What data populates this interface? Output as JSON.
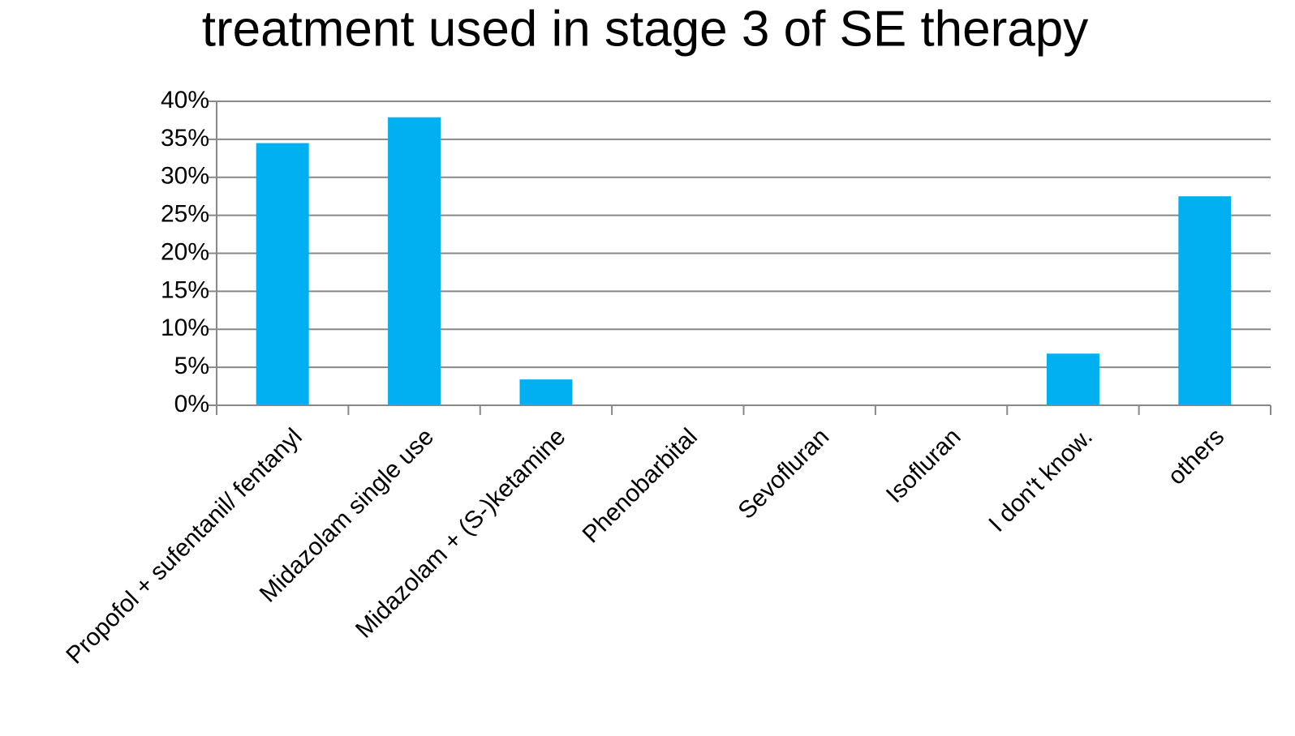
{
  "chart_data": {
    "type": "bar",
    "title": "treatment used in stage 3 of SE therapy",
    "categories": [
      "Propofol + sufentanil/ fentanyl",
      "Midazolam single use",
      "Midazolam + (S-)ketamine",
      "Phenobarbital",
      "Sevofluran",
      "Isofluran",
      "I don't know.",
      "others"
    ],
    "values": [
      34.5,
      37.9,
      3.4,
      0,
      0,
      0,
      6.8,
      27.5
    ],
    "color": "#00b0f0",
    "ylim": [
      0,
      40
    ],
    "yticks": [
      {
        "value": 0,
        "label": "0%"
      },
      {
        "value": 5,
        "label": "5%"
      },
      {
        "value": 10,
        "label": "10%"
      },
      {
        "value": 15,
        "label": "15%"
      },
      {
        "value": 20,
        "label": "20%"
      },
      {
        "value": 25,
        "label": "25%"
      },
      {
        "value": 30,
        "label": "30%"
      },
      {
        "value": 35,
        "label": "35%"
      },
      {
        "value": 40,
        "label": "40%"
      }
    ],
    "grid": true
  }
}
